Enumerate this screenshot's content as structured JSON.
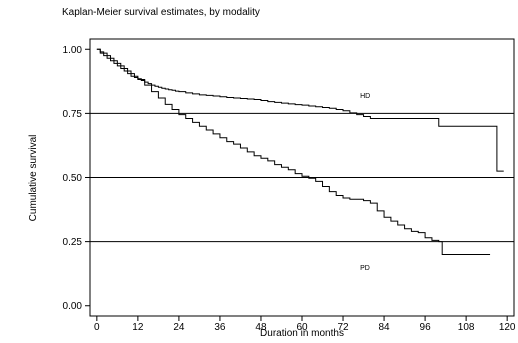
{
  "chart_data": {
    "type": "line",
    "title": "Kaplan-Meier survival estimates, by modality",
    "xlabel": "Duration in months",
    "ylabel": "Cumulative survival",
    "xlim": [
      -2,
      122
    ],
    "ylim": [
      -0.04,
      1.04
    ],
    "xticks": [
      0,
      12,
      24,
      36,
      48,
      60,
      72,
      84,
      96,
      108,
      120
    ],
    "yticks": [
      0.0,
      0.25,
      0.5,
      0.75,
      1.0
    ],
    "ytick_labels": [
      "0.00",
      "0.25",
      "0.50",
      "0.75",
      "1.00"
    ],
    "reference_lines": [
      0.25,
      0.5,
      0.75
    ],
    "grid": false,
    "series": [
      {
        "name": "HD",
        "label_at": [
          77,
          0.81
        ],
        "x": [
          0,
          1,
          2,
          3,
          4,
          5,
          6,
          7,
          8,
          9,
          10,
          11,
          12,
          13,
          14,
          15,
          16,
          17,
          18,
          19,
          20,
          21,
          22,
          23,
          24,
          26,
          28,
          30,
          32,
          34,
          36,
          38,
          40,
          42,
          44,
          46,
          48,
          50,
          52,
          54,
          56,
          58,
          60,
          62,
          64,
          66,
          68,
          70,
          72,
          74,
          76,
          78,
          80,
          84,
          90,
          96,
          100,
          106,
          110,
          114,
          116,
          117,
          119
        ],
        "y": [
          1.0,
          0.99,
          0.985,
          0.975,
          0.965,
          0.955,
          0.945,
          0.935,
          0.925,
          0.915,
          0.905,
          0.895,
          0.885,
          0.878,
          0.872,
          0.866,
          0.86,
          0.856,
          0.852,
          0.848,
          0.845,
          0.842,
          0.84,
          0.837,
          0.835,
          0.83,
          0.826,
          0.822,
          0.82,
          0.818,
          0.815,
          0.812,
          0.81,
          0.808,
          0.806,
          0.804,
          0.8,
          0.796,
          0.793,
          0.79,
          0.787,
          0.784,
          0.782,
          0.779,
          0.776,
          0.773,
          0.77,
          0.765,
          0.76,
          0.752,
          0.745,
          0.738,
          0.73,
          0.73,
          0.73,
          0.73,
          0.7,
          0.7,
          0.7,
          0.7,
          0.7,
          0.525,
          0.525
        ]
      },
      {
        "name": "PD",
        "label_at": [
          77,
          0.14
        ],
        "x": [
          0,
          1,
          2,
          3,
          4,
          5,
          6,
          7,
          8,
          9,
          10,
          11,
          12,
          14,
          16,
          18,
          20,
          22,
          24,
          26,
          28,
          30,
          32,
          34,
          36,
          38,
          40,
          42,
          44,
          46,
          48,
          50,
          52,
          54,
          56,
          58,
          60,
          62,
          64,
          66,
          68,
          70,
          72,
          74,
          76,
          78,
          80,
          82,
          84,
          86,
          88,
          90,
          92,
          94,
          96,
          98,
          100,
          101,
          104,
          108,
          112,
          115
        ],
        "y": [
          1.0,
          0.985,
          0.975,
          0.965,
          0.955,
          0.945,
          0.935,
          0.925,
          0.915,
          0.905,
          0.895,
          0.89,
          0.882,
          0.86,
          0.835,
          0.81,
          0.785,
          0.765,
          0.745,
          0.73,
          0.715,
          0.7,
          0.685,
          0.67,
          0.655,
          0.64,
          0.63,
          0.615,
          0.6,
          0.585,
          0.575,
          0.565,
          0.55,
          0.54,
          0.53,
          0.515,
          0.505,
          0.497,
          0.485,
          0.465,
          0.445,
          0.43,
          0.42,
          0.415,
          0.415,
          0.41,
          0.4,
          0.37,
          0.345,
          0.33,
          0.315,
          0.3,
          0.29,
          0.285,
          0.265,
          0.255,
          0.25,
          0.2,
          0.2,
          0.2,
          0.2,
          0.2
        ]
      }
    ]
  }
}
